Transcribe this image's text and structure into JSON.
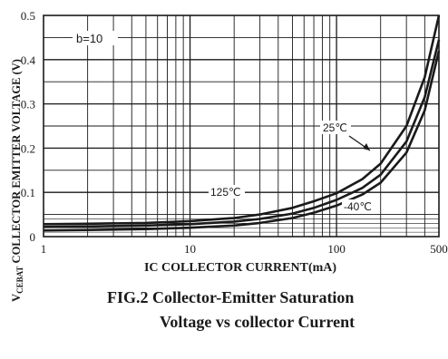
{
  "chart_data": {
    "type": "line",
    "title": "",
    "xlabel": "IC COLLECTOR CURRENT(mA)",
    "ylabel": "VCEBAT COLLECTOR EMITTER VOLTAGE (V)",
    "xscale": "log",
    "xlim": [
      1,
      500
    ],
    "ylim": [
      0,
      0.5
    ],
    "x_ticks": [
      "1",
      "10",
      "100",
      "500"
    ],
    "y_ticks": [
      "0",
      "0.1",
      "0.2",
      "0.3",
      "0.4",
      "0.5"
    ],
    "grid": true,
    "annotations": [
      "b=10",
      "25℃",
      "125℃",
      "-40℃"
    ],
    "series": [
      {
        "name": "25℃",
        "x": [
          1,
          2,
          5,
          10,
          20,
          30,
          50,
          70,
          100,
          150,
          200,
          300,
          400,
          500
        ],
        "y": [
          0.028,
          0.029,
          0.031,
          0.035,
          0.042,
          0.05,
          0.065,
          0.08,
          0.098,
          0.13,
          0.165,
          0.25,
          0.36,
          0.5
        ]
      },
      {
        "name": "125℃",
        "x": [
          1,
          2,
          5,
          10,
          20,
          30,
          50,
          70,
          100,
          150,
          200,
          300,
          400,
          500
        ],
        "y": [
          0.022,
          0.023,
          0.025,
          0.028,
          0.034,
          0.04,
          0.052,
          0.065,
          0.083,
          0.11,
          0.14,
          0.215,
          0.315,
          0.445
        ]
      },
      {
        "name": "-40℃",
        "x": [
          1,
          2,
          5,
          10,
          20,
          30,
          50,
          70,
          100,
          150,
          200,
          300,
          400,
          500
        ],
        "y": [
          0.014,
          0.015,
          0.017,
          0.02,
          0.025,
          0.031,
          0.042,
          0.054,
          0.07,
          0.095,
          0.122,
          0.19,
          0.285,
          0.42
        ]
      }
    ]
  },
  "caption": {
    "line1": "FIG.2 Collector-Emitter Saturation",
    "line2": "Voltage vs collector Current"
  },
  "ylabel_parts": {
    "v": "V",
    "sub": "CEBAT",
    "rest": " COLLECTOR EMITTER VOLTAGE (V)"
  }
}
